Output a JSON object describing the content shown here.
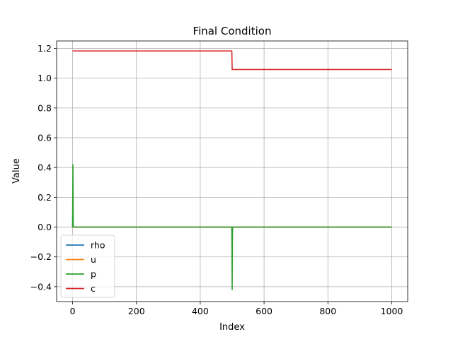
{
  "chart_data": {
    "type": "line",
    "title": "Final Condition",
    "xlabel": "Index",
    "ylabel": "Value",
    "xlim": [
      -50,
      1050
    ],
    "ylim": [
      -0.5,
      1.25
    ],
    "xticks": [
      0,
      200,
      400,
      600,
      800,
      1000
    ],
    "yticks": [
      -0.4,
      -0.2,
      0.0,
      0.2,
      0.4,
      0.6,
      0.8,
      1.0,
      1.2
    ],
    "xtick_labels": [
      "0",
      "200",
      "400",
      "600",
      "800",
      "1000"
    ],
    "ytick_labels": [
      "−0.4",
      "−0.2",
      "0.0",
      "0.2",
      "0.4",
      "0.6",
      "0.8",
      "1.0",
      "1.2"
    ],
    "grid": true,
    "legend_position": "lower-left",
    "series": [
      {
        "name": "rho",
        "color": "#1f77b4",
        "x": [
          0,
          1,
          2,
          498,
          499,
          500,
          501,
          502,
          1000
        ],
        "y": [
          0,
          0.17,
          0,
          0,
          0,
          -0.17,
          0,
          0,
          0
        ]
      },
      {
        "name": "u",
        "color": "#ff7f0e",
        "x": [
          0,
          1,
          2,
          498,
          499,
          500,
          501,
          502,
          1000
        ],
        "y": [
          0,
          0.03,
          0,
          0,
          0,
          -0.03,
          0,
          0,
          0
        ]
      },
      {
        "name": "p",
        "color": "#2ca02c",
        "x": [
          0,
          1,
          2,
          498,
          499,
          500,
          501,
          502,
          1000
        ],
        "y": [
          0,
          0.42,
          0,
          0,
          0,
          -0.42,
          0,
          0,
          0
        ]
      },
      {
        "name": "c",
        "color": "#d62728",
        "x": [
          0,
          499,
          500,
          1000
        ],
        "y": [
          1.183,
          1.183,
          1.058,
          1.058
        ]
      }
    ]
  }
}
